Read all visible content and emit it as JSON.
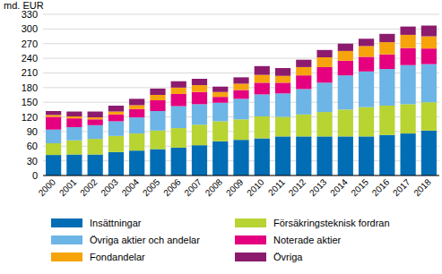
{
  "chart_data": {
    "type": "bar",
    "stacked": true,
    "grid": true,
    "legend": "bottom",
    "y_label": "md. EUR",
    "categories": [
      "2000",
      "2001",
      "2002",
      "2003",
      "2004",
      "2005",
      "2006",
      "2007",
      "2008",
      "2009",
      "2010",
      "2011",
      "2012",
      "2013",
      "2014",
      "2015",
      "2016",
      "2017",
      "2018"
    ],
    "ylim": [
      0,
      330
    ],
    "yticks": [
      0,
      30,
      60,
      90,
      120,
      150,
      180,
      210,
      240,
      270,
      300,
      330
    ],
    "series": [
      {
        "name": "Insättningar",
        "color": "#006db5",
        "values": [
          42,
          43,
          43,
          48,
          51,
          54,
          57,
          62,
          70,
          73,
          76,
          80,
          80,
          80,
          80,
          80,
          83,
          86,
          92
        ]
      },
      {
        "name": "Försäkringsteknisk fordran",
        "color": "#b7d432",
        "values": [
          24,
          29,
          32,
          33,
          35,
          38,
          40,
          42,
          41,
          42,
          45,
          40,
          45,
          50,
          55,
          60,
          60,
          60,
          58
        ]
      },
      {
        "name": "Övriga aktier och andelar",
        "color": "#6cb5e6",
        "values": [
          28,
          27,
          28,
          30,
          33,
          40,
          45,
          42,
          38,
          42,
          45,
          48,
          52,
          60,
          70,
          73,
          75,
          80,
          78
        ]
      },
      {
        "name": "Noterade aktier",
        "color": "#e4007e",
        "values": [
          26,
          18,
          12,
          14,
          17,
          22,
          25,
          25,
          12,
          18,
          24,
          22,
          28,
          32,
          30,
          30,
          30,
          35,
          32
        ]
      },
      {
        "name": "Fondandelar",
        "color": "#f7a30c",
        "values": [
          4,
          4,
          4,
          6,
          8,
          11,
          13,
          14,
          10,
          13,
          16,
          14,
          17,
          20,
          20,
          22,
          25,
          27,
          25
        ]
      },
      {
        "name": "Övriga",
        "color": "#8c1b6e",
        "values": [
          8,
          10,
          12,
          12,
          13,
          13,
          13,
          13,
          11,
          13,
          18,
          16,
          15,
          15,
          15,
          15,
          17,
          17,
          22
        ]
      }
    ]
  }
}
